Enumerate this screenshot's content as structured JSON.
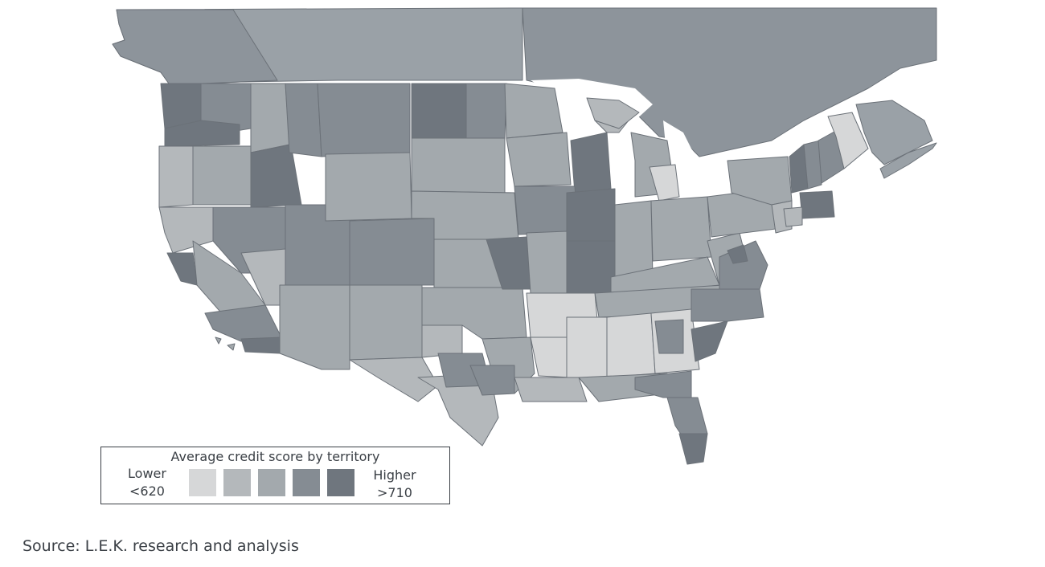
{
  "palette": {
    "level1": "#d6d7d8",
    "level2": "#b4b8bb",
    "level3": "#a3a9ad",
    "level4": "#858c93",
    "level5": "#6f767e",
    "water": "#ffffff",
    "canada": "#9aa1a7",
    "canada_dark": "#8d949b",
    "border": "#6b7178"
  },
  "legend": {
    "title": "Average credit score by territory",
    "lower_label": "Lower",
    "lower_value": "<620",
    "higher_label": "Higher",
    "higher_value": ">710",
    "levels": [
      1,
      2,
      3,
      4,
      5
    ]
  },
  "source": "Source: L.E.K. research and analysis"
}
